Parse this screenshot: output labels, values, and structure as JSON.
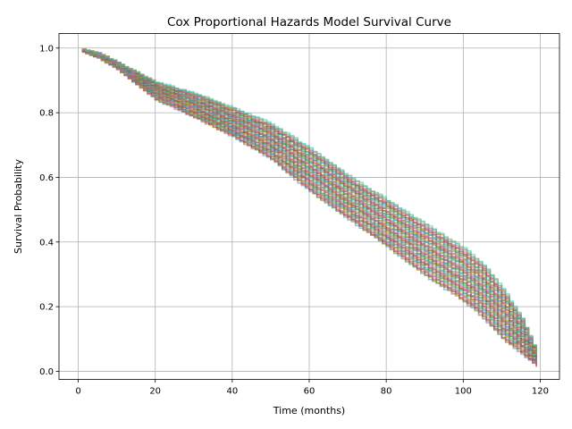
{
  "chart_data": {
    "type": "line",
    "title": "Cox Proportional Hazards Model Survival Curve",
    "xlabel": "Time (months)",
    "ylabel": "Survival Probability",
    "xlim": [
      -5,
      125
    ],
    "ylim": [
      -0.025,
      1.045
    ],
    "x_ticks": [
      0,
      20,
      40,
      60,
      80,
      100,
      120
    ],
    "x_tick_labels": [
      "0",
      "20",
      "40",
      "60",
      "80",
      "100",
      "120"
    ],
    "y_ticks": [
      0.0,
      0.2,
      0.4,
      0.6,
      0.8,
      1.0
    ],
    "y_tick_labels": [
      "0.0",
      "0.2",
      "0.4",
      "0.6",
      "0.8",
      "1.0"
    ],
    "grid": true,
    "legend": "none",
    "series_style": "many overlapping semi-transparent step curves forming a band",
    "envelope": {
      "x": [
        1,
        5,
        10,
        20,
        30,
        40,
        50,
        60,
        70,
        80,
        90,
        100,
        105,
        110,
        115,
        119
      ],
      "upper": [
        0.995,
        0.985,
        0.955,
        0.895,
        0.86,
        0.815,
        0.765,
        0.69,
        0.605,
        0.53,
        0.455,
        0.38,
        0.33,
        0.255,
        0.165,
        0.055
      ],
      "lower": [
        0.99,
        0.97,
        0.935,
        0.84,
        0.785,
        0.725,
        0.655,
        0.555,
        0.47,
        0.385,
        0.295,
        0.215,
        0.165,
        0.1,
        0.055,
        0.015
      ]
    },
    "curve_count": 60,
    "colors": [
      "#1f77b4",
      "#ff7f0e",
      "#2ca02c",
      "#d62728",
      "#9467bd",
      "#8c564b",
      "#e377c2",
      "#7f7f7f",
      "#bcbd22",
      "#17becf"
    ]
  }
}
